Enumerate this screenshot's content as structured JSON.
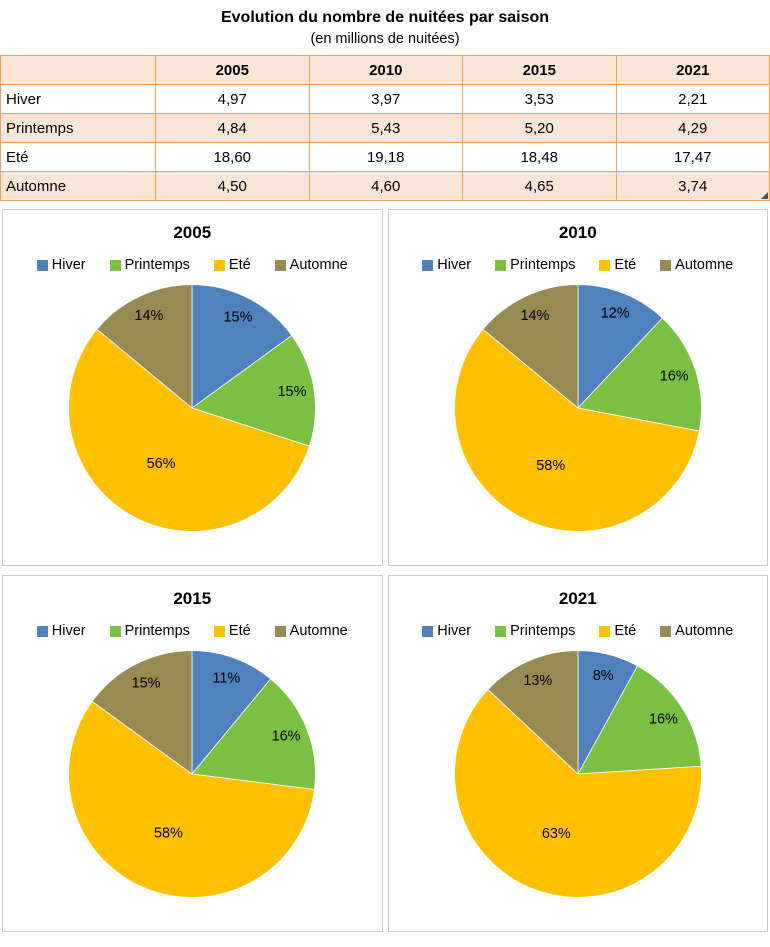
{
  "table": {
    "title": "Evolution du nombre de nuitées par saison",
    "subtitle": "(en millions de nuitées)",
    "col_headers": [
      "2005",
      "2010",
      "2015",
      "2021"
    ],
    "rows": [
      {
        "label": "Hiver",
        "values": [
          "4,97",
          "3,97",
          "3,53",
          "2,21"
        ]
      },
      {
        "label": "Printemps",
        "values": [
          "4,84",
          "5,43",
          "5,20",
          "4,29"
        ]
      },
      {
        "label": "Eté",
        "values": [
          "18,60",
          "19,18",
          "18,48",
          "17,47"
        ]
      },
      {
        "label": "Automne",
        "values": [
          "4,50",
          "4,60",
          "4,65",
          "3,74"
        ]
      }
    ]
  },
  "colors": {
    "series": [
      "#4F81BD",
      "#7AC143",
      "#FFC000",
      "#968B52"
    ],
    "table_border": "#F1A15C",
    "table_fill": "#FBE5D6",
    "panel_border": "#C9C9C9",
    "corner_mark": "#44546A"
  },
  "chart_data": [
    {
      "type": "pie",
      "title": "2005",
      "categories": [
        "Hiver",
        "Printemps",
        "Eté",
        "Automne"
      ],
      "values": [
        15,
        15,
        56,
        14
      ],
      "labels": [
        "15%",
        "15%",
        "56%",
        "14%"
      ],
      "legend_position": "top"
    },
    {
      "type": "pie",
      "title": "2010",
      "categories": [
        "Hiver",
        "Printemps",
        "Eté",
        "Automne"
      ],
      "values": [
        12,
        16,
        58,
        14
      ],
      "labels": [
        "12%",
        "16%",
        "58%",
        "14%"
      ],
      "legend_position": "top"
    },
    {
      "type": "pie",
      "title": "2015",
      "categories": [
        "Hiver",
        "Printemps",
        "Eté",
        "Automne"
      ],
      "values": [
        11,
        16,
        58,
        15
      ],
      "labels": [
        "11%",
        "16%",
        "58%",
        "15%"
      ],
      "legend_position": "top"
    },
    {
      "type": "pie",
      "title": "2021",
      "categories": [
        "Hiver",
        "Printemps",
        "Eté",
        "Automne"
      ],
      "values": [
        8,
        16,
        63,
        13
      ],
      "labels": [
        "8%",
        "16%",
        "63%",
        "13%"
      ],
      "legend_position": "top"
    }
  ]
}
